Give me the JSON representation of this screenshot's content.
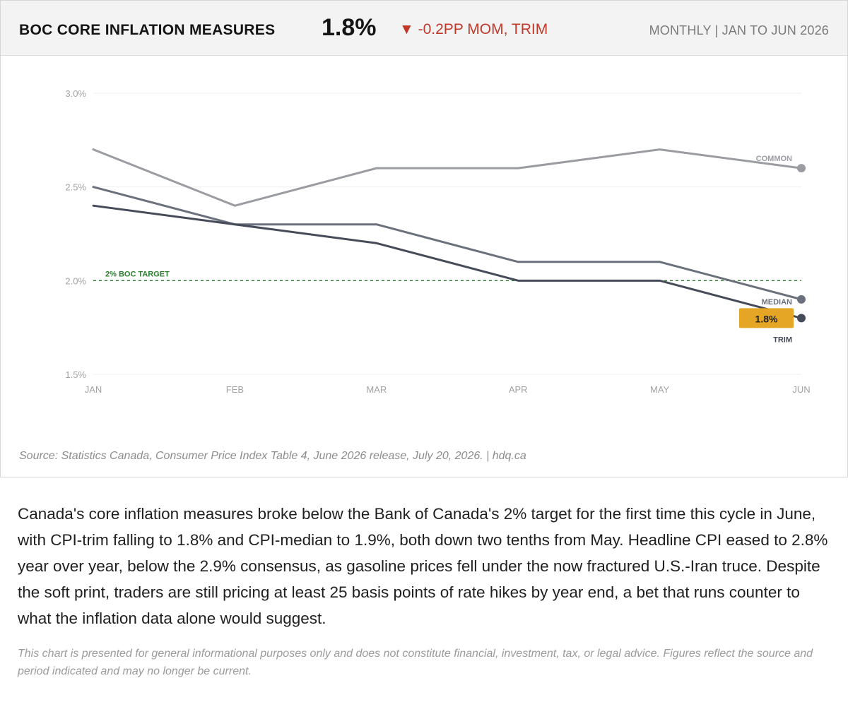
{
  "header": {
    "title": "BOC CORE INFLATION MEASURES",
    "value": "1.8%",
    "change": "▼ -0.2PP MOM, TRIM",
    "period": "MONTHLY | JAN TO JUN 2026"
  },
  "chart_data": {
    "type": "line",
    "categories": [
      "JAN",
      "FEB",
      "MAR",
      "APR",
      "MAY",
      "JUN"
    ],
    "ylim": [
      1.5,
      3.0
    ],
    "yticks": [
      "1.5%",
      "2.0%",
      "2.5%",
      "3.0%"
    ],
    "ytick_values": [
      1.5,
      2.0,
      2.5,
      3.0
    ],
    "series": [
      {
        "name": "COMMON",
        "values": [
          2.7,
          2.4,
          2.6,
          2.6,
          2.7,
          2.6
        ],
        "color": "#9a9ca2"
      },
      {
        "name": "MEDIAN",
        "values": [
          2.5,
          2.3,
          2.3,
          2.1,
          2.1,
          1.9
        ],
        "color": "#6b717c"
      },
      {
        "name": "TRIM",
        "values": [
          2.4,
          2.3,
          2.2,
          2.0,
          2.0,
          1.8
        ],
        "color": "#454b59"
      }
    ],
    "reference_line": {
      "label": "2% BOC TARGET",
      "value": 2.0,
      "color": "#2e7d32"
    },
    "highlight": {
      "label": "1.8%",
      "series": "TRIM",
      "color": "#e5a625"
    },
    "grid": true
  },
  "source": "Source: Statistics Canada, Consumer Price Index Table 4, June 2026 release, July 20, 2026.  |  hdq.ca",
  "summary": "Canada's core inflation measures broke below the Bank of Canada's 2% target for the first time this cycle in June, with CPI-trim falling to 1.8% and CPI-median to 1.9%, both down two tenths from May. Headline CPI eased to 2.8% year over year, below the 2.9% consensus, as gasoline prices fell under the now fractured U.S.-Iran truce. Despite the soft print, traders are still pricing at least 25 basis points of rate hikes by year end, a bet that runs counter to what the inflation data alone would suggest.",
  "disclaimer": "This chart is presented for general informational purposes only and does not constitute financial, investment, tax, or legal advice. Figures reflect the source and period indicated and may no longer be current."
}
